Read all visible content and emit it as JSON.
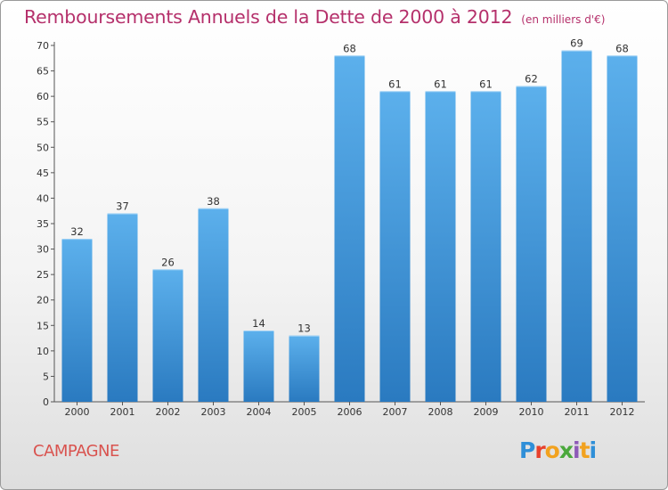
{
  "header": {
    "title": "Remboursements Annuels de la Dette de 2000 à 2012",
    "unit": "(en milliers d'€)"
  },
  "footer": {
    "town": "CAMPAGNE",
    "brand": "Proxiti"
  },
  "colors": {
    "title": "#b5306b",
    "town": "#d9534f",
    "bar_top": "#5cb0ec",
    "bar_bottom": "#2a7ac0",
    "brand_letters": [
      "#2f8fd8",
      "#e8412c",
      "#f2a21f",
      "#4aa83c",
      "#8d5ab7",
      "#f2a21f",
      "#2f8fd8"
    ]
  },
  "chart_data": {
    "type": "bar",
    "categories": [
      "2000",
      "2001",
      "2002",
      "2003",
      "2004",
      "2005",
      "2006",
      "2007",
      "2008",
      "2009",
      "2010",
      "2011",
      "2012"
    ],
    "values": [
      32,
      37,
      26,
      38,
      14,
      13,
      68,
      61,
      61,
      61,
      62,
      69,
      68
    ],
    "ylim": [
      0,
      70
    ],
    "yticks": [
      0,
      5,
      10,
      15,
      20,
      25,
      30,
      35,
      40,
      45,
      50,
      55,
      60,
      65,
      70
    ],
    "grid": false,
    "data_labels": true
  }
}
